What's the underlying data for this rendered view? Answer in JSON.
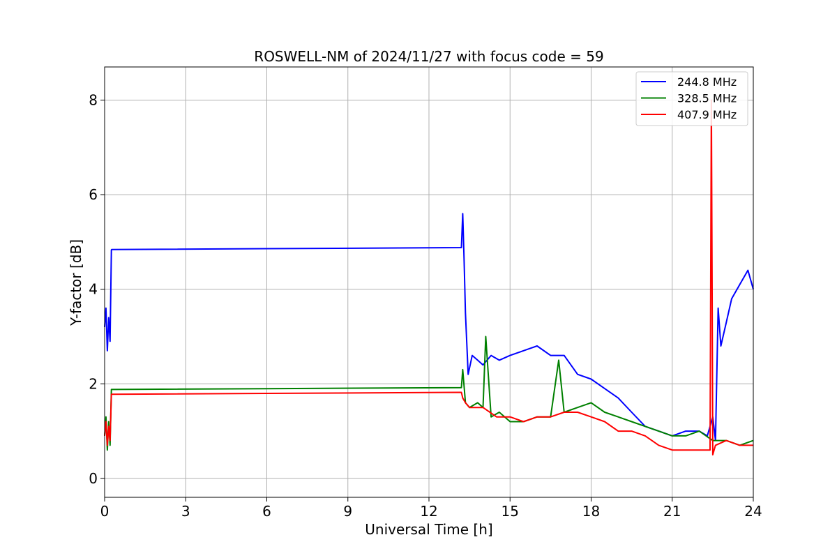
{
  "chart_data": {
    "type": "line",
    "title": "ROSWELL-NM of 2024/11/27 with focus code = 59",
    "xlabel": "Universal Time [h]",
    "ylabel": "Y-factor [dB]",
    "xlim": [
      0,
      24
    ],
    "ylim": [
      -0.4,
      8.7
    ],
    "xticks": [
      0,
      3,
      6,
      9,
      12,
      15,
      18,
      21,
      24
    ],
    "yticks": [
      0,
      2,
      4,
      6,
      8
    ],
    "grid": true,
    "legend_position": "top-right",
    "series": [
      {
        "name": "244.8 MHz",
        "color": "#0000ff",
        "x": [
          0.0,
          0.05,
          0.1,
          0.15,
          0.2,
          0.25,
          0.26,
          13.2,
          13.25,
          13.3,
          13.35,
          13.45,
          13.6,
          13.8,
          14.0,
          14.3,
          14.6,
          15.0,
          15.5,
          16.0,
          16.5,
          17.0,
          17.5,
          18.0,
          18.5,
          19.0,
          19.5,
          20.0,
          20.5,
          21.0,
          21.5,
          22.0,
          22.3,
          22.5,
          22.6,
          22.7,
          22.8,
          23.0,
          23.2,
          23.5,
          23.8,
          24.0
        ],
        "y": [
          3.2,
          3.6,
          2.7,
          3.4,
          2.9,
          4.83,
          4.84,
          4.88,
          5.6,
          4.6,
          3.5,
          2.2,
          2.6,
          2.5,
          2.4,
          2.6,
          2.5,
          2.6,
          2.7,
          2.8,
          2.6,
          2.6,
          2.2,
          2.1,
          1.9,
          1.7,
          1.4,
          1.1,
          1.0,
          0.9,
          1.0,
          1.0,
          0.9,
          1.3,
          0.8,
          3.6,
          2.8,
          3.3,
          3.8,
          4.1,
          4.4,
          4.0
        ]
      },
      {
        "name": "328.5 MHz",
        "color": "#008000",
        "x": [
          0.0,
          0.05,
          0.1,
          0.15,
          0.2,
          0.25,
          0.26,
          13.2,
          13.25,
          13.35,
          13.5,
          13.8,
          14.0,
          14.1,
          14.3,
          14.6,
          15.0,
          15.5,
          16.0,
          16.5,
          16.8,
          17.0,
          17.5,
          18.0,
          18.5,
          19.0,
          19.5,
          20.0,
          20.5,
          21.0,
          21.5,
          22.0,
          22.5,
          23.0,
          23.5,
          24.0
        ],
        "y": [
          0.9,
          1.3,
          0.6,
          1.2,
          0.7,
          1.88,
          1.88,
          1.92,
          2.3,
          1.6,
          1.5,
          1.6,
          1.5,
          3.0,
          1.3,
          1.4,
          1.2,
          1.2,
          1.3,
          1.3,
          2.5,
          1.4,
          1.5,
          1.6,
          1.4,
          1.3,
          1.2,
          1.1,
          1.0,
          0.9,
          0.9,
          1.0,
          0.8,
          0.8,
          0.7,
          0.8
        ]
      },
      {
        "name": "407.9 MHz",
        "color": "#ff0000",
        "x": [
          0.0,
          0.05,
          0.1,
          0.15,
          0.2,
          0.25,
          0.26,
          13.2,
          13.25,
          13.35,
          13.5,
          13.8,
          14.0,
          14.5,
          15.0,
          15.5,
          16.0,
          16.5,
          17.0,
          17.5,
          18.0,
          18.5,
          19.0,
          19.5,
          20.0,
          20.5,
          21.0,
          21.5,
          22.0,
          22.4,
          22.45,
          22.5,
          22.55,
          22.6,
          23.0,
          23.5,
          24.0
        ],
        "y": [
          0.9,
          1.2,
          0.7,
          1.1,
          0.8,
          1.78,
          1.78,
          1.82,
          1.7,
          1.6,
          1.5,
          1.5,
          1.5,
          1.3,
          1.3,
          1.2,
          1.3,
          1.3,
          1.4,
          1.4,
          1.3,
          1.2,
          1.0,
          1.0,
          0.9,
          0.7,
          0.6,
          0.6,
          0.6,
          0.6,
          8.0,
          0.5,
          0.6,
          0.7,
          0.8,
          0.7,
          0.7
        ]
      }
    ]
  }
}
